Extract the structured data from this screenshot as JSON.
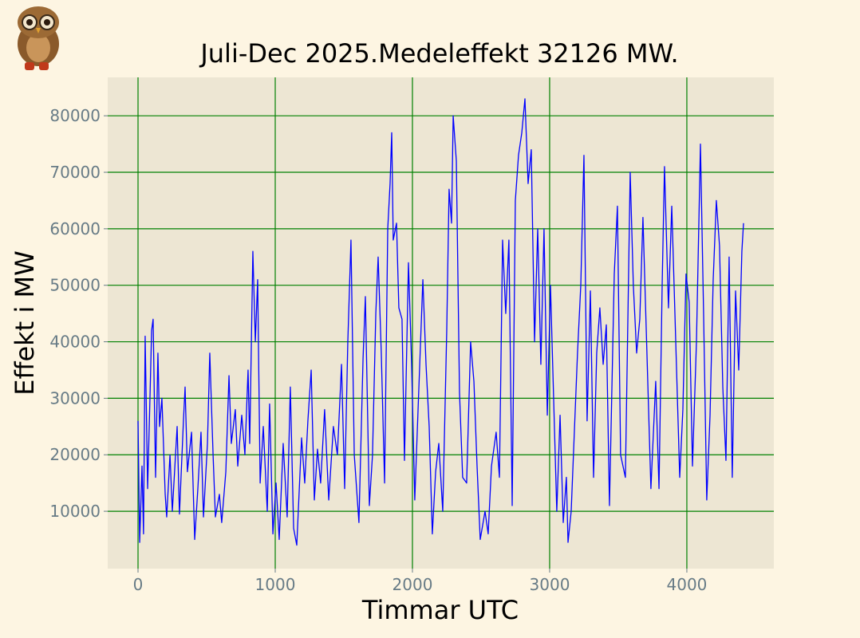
{
  "chart_data": {
    "type": "line",
    "title": "Juli-Dec 2025.Medeleffekt 32126 MW.",
    "xlabel": "Timmar UTC",
    "ylabel": "Effekt i MW",
    "xlim": [
      -221,
      4634
    ],
    "ylim": [
      -150,
      86800
    ],
    "xticks": [
      0,
      1000,
      2000,
      3000,
      4000
    ],
    "yticks": [
      10000,
      20000,
      30000,
      40000,
      50000,
      60000,
      70000,
      80000
    ],
    "grid": true,
    "grid_color": "#008000",
    "x": [
      0,
      12,
      29,
      40,
      52,
      70,
      87,
      99,
      110,
      128,
      145,
      157,
      174,
      198,
      209,
      233,
      250,
      285,
      302,
      331,
      343,
      360,
      390,
      413,
      436,
      459,
      477,
      506,
      523,
      547,
      564,
      593,
      610,
      640,
      663,
      680,
      709,
      727,
      756,
      779,
      802,
      814,
      837,
      855,
      872,
      890,
      913,
      942,
      959,
      983,
      1006,
      1029,
      1058,
      1087,
      1110,
      1134,
      1157,
      1192,
      1215,
      1238,
      1262,
      1285,
      1308,
      1331,
      1360,
      1390,
      1424,
      1453,
      1483,
      1506,
      1529,
      1552,
      1576,
      1610,
      1640,
      1657,
      1686,
      1709,
      1733,
      1750,
      1773,
      1797,
      1820,
      1837,
      1849,
      1860,
      1884,
      1901,
      1924,
      1942,
      1971,
      1994,
      2017,
      2041,
      2076,
      2099,
      2122,
      2145,
      2169,
      2192,
      2221,
      2250,
      2267,
      2285,
      2297,
      2320,
      2343,
      2366,
      2395,
      2424,
      2448,
      2471,
      2494,
      2529,
      2552,
      2576,
      2610,
      2634,
      2657,
      2680,
      2703,
      2727,
      2750,
      2773,
      2797,
      2820,
      2843,
      2866,
      2890,
      2913,
      2936,
      2959,
      2983,
      3006,
      3029,
      3052,
      3076,
      3099,
      3122,
      3134,
      3157,
      3180,
      3203,
      3227,
      3250,
      3273,
      3297,
      3320,
      3343,
      3366,
      3390,
      3413,
      3436,
      3471,
      3494,
      3517,
      3552,
      3587,
      3610,
      3634,
      3657,
      3680,
      3703,
      3738,
      3773,
      3797,
      3820,
      3837,
      3866,
      3890,
      3913,
      3948,
      3971,
      3994,
      4017,
      4041,
      4070,
      4099,
      4122,
      4145,
      4169,
      4192,
      4215,
      4238,
      4262,
      4285,
      4308,
      4331,
      4355,
      4378,
      4401,
      4413
    ],
    "series": [
      {
        "color": "#0000ff",
        "values": [
          26000,
          4500,
          18000,
          6000,
          41000,
          14000,
          30000,
          42000,
          44000,
          16000,
          38000,
          25000,
          30000,
          13000,
          9000,
          20000,
          10000,
          25000,
          9500,
          26000,
          32000,
          17000,
          24000,
          5000,
          14000,
          24000,
          9000,
          22000,
          38000,
          20000,
          9000,
          13000,
          8000,
          17000,
          34000,
          22000,
          28000,
          18000,
          27000,
          20000,
          35000,
          22000,
          56000,
          40000,
          51000,
          15000,
          25000,
          10000,
          29000,
          6000,
          15000,
          5000,
          22000,
          9000,
          32000,
          7000,
          4000,
          23000,
          15000,
          26000,
          35000,
          12000,
          21000,
          15000,
          28000,
          12000,
          25000,
          20000,
          36000,
          14000,
          40000,
          58000,
          20000,
          8000,
          37000,
          48000,
          11000,
          20000,
          45000,
          55000,
          38000,
          15000,
          60000,
          68000,
          77000,
          58000,
          61000,
          46000,
          44000,
          19000,
          54000,
          36000,
          12000,
          28000,
          51000,
          36000,
          25000,
          6000,
          17000,
          22000,
          10000,
          42000,
          67000,
          61000,
          80000,
          72000,
          31000,
          16000,
          15000,
          40000,
          33000,
          18000,
          5000,
          10000,
          6000,
          18000,
          24000,
          16000,
          58000,
          45000,
          58000,
          11000,
          65000,
          73000,
          77000,
          83000,
          68000,
          74000,
          40000,
          60000,
          36000,
          60000,
          27000,
          50000,
          30000,
          10000,
          27000,
          8000,
          16000,
          4500,
          10000,
          24000,
          38000,
          50000,
          73000,
          26000,
          49000,
          16000,
          38000,
          46000,
          36000,
          43000,
          11000,
          52000,
          64000,
          20000,
          16000,
          70000,
          50000,
          38000,
          44000,
          62000,
          43000,
          14000,
          33000,
          14000,
          50000,
          71000,
          46000,
          64000,
          45000,
          16000,
          28000,
          52000,
          47000,
          18000,
          40000,
          75000,
          45000,
          12000,
          27000,
          51000,
          65000,
          57000,
          32000,
          19000,
          55000,
          16000,
          49000,
          35000,
          56000,
          61000
        ]
      }
    ]
  }
}
